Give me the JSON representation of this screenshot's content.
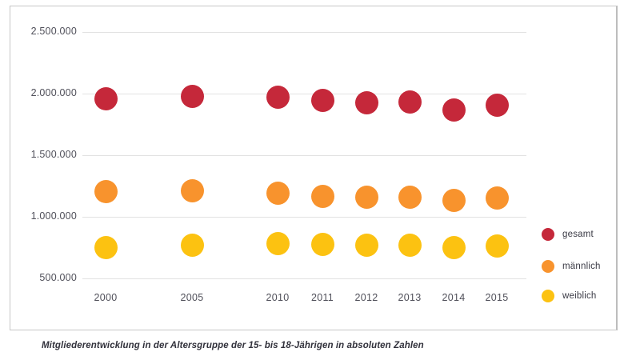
{
  "caption": "Mitgliederentwicklung in der Altersgruppe der 15- bis 18-Jährigen in absoluten Zahlen",
  "colors": {
    "gesamt": "#c5283a",
    "maennlich": "#f8932d",
    "weiblich": "#fcc211",
    "gridline": "#e2e2e2",
    "axis_text": "#50505a",
    "border": "#c6c6c6"
  },
  "chart_data": {
    "type": "scatter",
    "title": "",
    "xlabel": "",
    "ylabel": "",
    "categories": [
      "2000",
      "2005",
      "2010",
      "2011",
      "2012",
      "2013",
      "2014",
      "2015"
    ],
    "series": [
      {
        "name": "gesamt",
        "color": "#c5283a",
        "values": [
          1960000,
          1980000,
          1970000,
          1945000,
          1925000,
          1935000,
          1865000,
          1905000
        ]
      },
      {
        "name": "männlich",
        "color": "#f8932d",
        "values": [
          1205000,
          1210000,
          1190000,
          1165000,
          1160000,
          1160000,
          1130000,
          1150000
        ]
      },
      {
        "name": "weiblich",
        "color": "#fcc211",
        "values": [
          750000,
          770000,
          780000,
          775000,
          770000,
          770000,
          750000,
          765000
        ]
      }
    ],
    "y_ticks": [
      "2.500.000",
      "2.000.000",
      "1.500.000",
      "1.000.000",
      "500.000"
    ],
    "y_tick_values": [
      2500000,
      2000000,
      1500000,
      1000000,
      500000
    ],
    "ylim": [
      350000,
      2650000
    ],
    "grid": true,
    "legend_position": "right",
    "legend": [
      "gesamt",
      "männlich",
      "weiblich"
    ]
  }
}
